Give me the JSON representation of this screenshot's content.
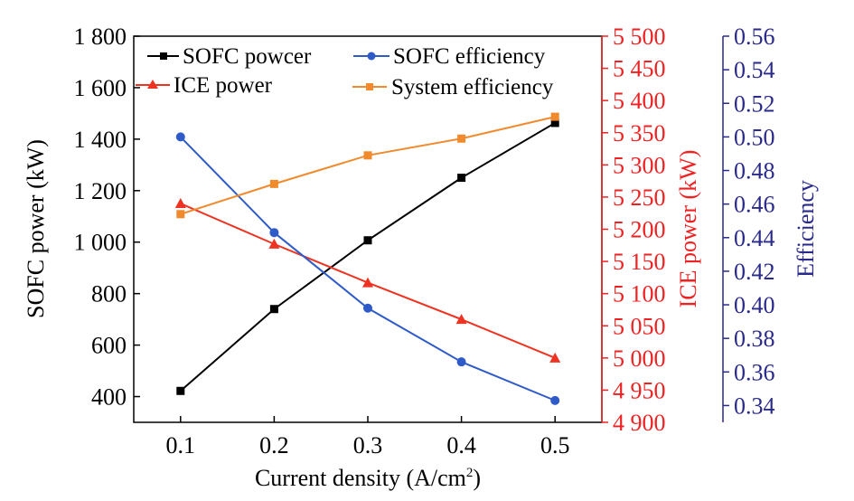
{
  "chart_data": {
    "type": "line",
    "xlabel": "Current density (A/cm",
    "xlabel_sup": "2",
    "xlabel_end": ")",
    "x": [
      0.1,
      0.2,
      0.3,
      0.4,
      0.5
    ],
    "x_tick_labels": [
      "0.1",
      "0.2",
      "0.3",
      "0.4",
      "0.5"
    ],
    "xlim": [
      0.05,
      0.55
    ],
    "axes": {
      "left": {
        "label": "SOFC power (kW)",
        "ylim": [
          300,
          1800
        ],
        "color": "#000000",
        "ticks": [
          400,
          600,
          800,
          1000,
          1200,
          1400,
          1600,
          1800
        ],
        "tick_labels": [
          "400",
          "600",
          "800",
          "1 000",
          "1 200",
          "1 400",
          "1 600",
          "1 800"
        ]
      },
      "right1": {
        "label": "ICE power (kW)",
        "ylim": [
          4900,
          5500
        ],
        "color": "#ee2222",
        "ticks": [
          4900,
          4950,
          5000,
          5050,
          5100,
          5150,
          5200,
          5250,
          5300,
          5350,
          5400,
          5450,
          5500
        ],
        "tick_labels": [
          "4 900",
          "4 950",
          "5 000",
          "5 050",
          "5 100",
          "5 150",
          "5 200",
          "5 250",
          "5 300",
          "5 350",
          "5 400",
          "5 450",
          "5 500"
        ]
      },
      "right2": {
        "label": "Efficiency",
        "ylim": [
          0.33,
          0.56
        ],
        "color": "#2a2a8a",
        "ticks": [
          0.34,
          0.36,
          0.38,
          0.4,
          0.42,
          0.44,
          0.46,
          0.48,
          0.5,
          0.52,
          0.54,
          0.56
        ],
        "tick_labels": [
          "0.34",
          "0.36",
          "0.38",
          "0.40",
          "0.42",
          "0.44",
          "0.46",
          "0.48",
          "0.50",
          "0.52",
          "0.54",
          "0.56"
        ]
      }
    },
    "series": [
      {
        "name": "SOFC powcer",
        "axis": "left",
        "color": "#000000",
        "marker": "square",
        "values": [
          422,
          740,
          1007,
          1250,
          1463
        ]
      },
      {
        "name": "ICE power",
        "axis": "right1",
        "color": "#ee3322",
        "marker": "triangle",
        "values": [
          5240,
          5177,
          5117,
          5060,
          5000
        ]
      },
      {
        "name": "SOFC efficiency",
        "axis": "right2",
        "color": "#2f5bc8",
        "marker": "circle",
        "values": [
          0.5,
          0.443,
          0.398,
          0.366,
          0.343
        ]
      },
      {
        "name": "System efficiency",
        "axis": "right2",
        "color": "#f08a2c",
        "marker": "square",
        "values": [
          0.454,
          0.472,
          0.489,
          0.499,
          0.512
        ]
      }
    ]
  }
}
